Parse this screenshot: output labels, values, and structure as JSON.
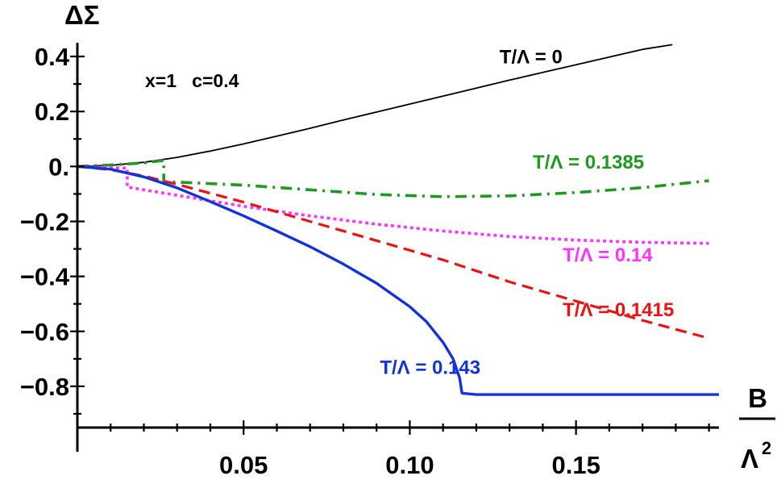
{
  "chart_data": {
    "type": "line",
    "title": "",
    "ylabel": "ΔΣ",
    "xlabel": {
      "numerator": "B",
      "denominator": "Λ",
      "denominator_exp": "2"
    },
    "annotation": "x=1   c=0.4",
    "xlim": [
      0,
      0.193
    ],
    "ylim": [
      -0.95,
      0.45
    ],
    "x_ticks": [
      {
        "value": 0.05,
        "label": "0.05"
      },
      {
        "value": 0.1,
        "label": "0.10"
      },
      {
        "value": 0.15,
        "label": "0.15"
      }
    ],
    "y_ticks": [
      {
        "value": 0.4,
        "label": "0.4"
      },
      {
        "value": 0.2,
        "label": "0.2"
      },
      {
        "value": 0.0,
        "label": "0."
      },
      {
        "value": -0.2,
        "label": "−0.2"
      },
      {
        "value": -0.4,
        "label": "−0.4"
      },
      {
        "value": -0.6,
        "label": "−0.6"
      },
      {
        "value": -0.8,
        "label": "−0.8"
      }
    ],
    "grid": false,
    "series": [
      {
        "name": "T/Λ = 0",
        "color": "#000000",
        "style": "solid",
        "points": [
          [
            0,
            0
          ],
          [
            0.01,
            0.004
          ],
          [
            0.02,
            0.015
          ],
          [
            0.03,
            0.033
          ],
          [
            0.04,
            0.056
          ],
          [
            0.05,
            0.082
          ],
          [
            0.06,
            0.11
          ],
          [
            0.07,
            0.139
          ],
          [
            0.08,
            0.169
          ],
          [
            0.09,
            0.198
          ],
          [
            0.1,
            0.227
          ],
          [
            0.11,
            0.256
          ],
          [
            0.12,
            0.285
          ],
          [
            0.13,
            0.314
          ],
          [
            0.14,
            0.342
          ],
          [
            0.15,
            0.37
          ],
          [
            0.16,
            0.398
          ],
          [
            0.17,
            0.426
          ],
          [
            0.179,
            0.443
          ]
        ]
      },
      {
        "name": "T/Λ = 0.1385",
        "color": "#1f9a1f",
        "style": "dashdot",
        "points": [
          [
            0,
            0
          ],
          [
            0.01,
            0.005
          ],
          [
            0.02,
            0.013
          ],
          [
            0.026,
            0.022
          ],
          [
            0.026,
            -0.055
          ],
          [
            0.03,
            -0.057
          ],
          [
            0.05,
            -0.068
          ],
          [
            0.07,
            -0.085
          ],
          [
            0.09,
            -0.102
          ],
          [
            0.11,
            -0.11
          ],
          [
            0.13,
            -0.107
          ],
          [
            0.15,
            -0.095
          ],
          [
            0.17,
            -0.077
          ],
          [
            0.19,
            -0.052
          ]
        ]
      },
      {
        "name": "T/Λ = 0.14",
        "color": "#ff33ff",
        "style": "dotted",
        "points": [
          [
            0,
            0
          ],
          [
            0.005,
            -0.003
          ],
          [
            0.015,
            -0.006
          ],
          [
            0.015,
            -0.075
          ],
          [
            0.03,
            -0.105
          ],
          [
            0.05,
            -0.145
          ],
          [
            0.07,
            -0.18
          ],
          [
            0.09,
            -0.21
          ],
          [
            0.11,
            -0.235
          ],
          [
            0.13,
            -0.255
          ],
          [
            0.15,
            -0.268
          ],
          [
            0.17,
            -0.276
          ],
          [
            0.19,
            -0.28
          ]
        ]
      },
      {
        "name": "T/Λ = 0.1415",
        "color": "#ee1111",
        "style": "dashed",
        "points": [
          [
            0,
            0
          ],
          [
            0.01,
            -0.012
          ],
          [
            0.02,
            -0.035
          ],
          [
            0.03,
            -0.065
          ],
          [
            0.05,
            -0.13
          ],
          [
            0.07,
            -0.2
          ],
          [
            0.09,
            -0.27
          ],
          [
            0.11,
            -0.34
          ],
          [
            0.13,
            -0.42
          ],
          [
            0.15,
            -0.49
          ],
          [
            0.17,
            -0.56
          ],
          [
            0.19,
            -0.625
          ]
        ]
      },
      {
        "name": "T/Λ = 0.143",
        "color": "#1133dd",
        "style": "solid-thick",
        "points": [
          [
            0,
            0
          ],
          [
            0.01,
            -0.01
          ],
          [
            0.02,
            -0.038
          ],
          [
            0.03,
            -0.078
          ],
          [
            0.04,
            -0.128
          ],
          [
            0.05,
            -0.18
          ],
          [
            0.06,
            -0.235
          ],
          [
            0.07,
            -0.292
          ],
          [
            0.08,
            -0.355
          ],
          [
            0.09,
            -0.425
          ],
          [
            0.1,
            -0.51
          ],
          [
            0.105,
            -0.565
          ],
          [
            0.11,
            -0.64
          ],
          [
            0.113,
            -0.7
          ],
          [
            0.115,
            -0.77
          ],
          [
            0.1157,
            -0.825
          ],
          [
            0.12,
            -0.83
          ],
          [
            0.193,
            -0.83
          ]
        ]
      }
    ],
    "series_labels": [
      {
        "text": "T/Λ = 0",
        "color": "#000000",
        "x": 0.127,
        "y": 0.375
      },
      {
        "text": "T/Λ = 0.1385",
        "color": "#1f9a1f",
        "x": 0.137,
        "y": -0.008
      },
      {
        "text": "T/Λ = 0.14",
        "color": "#ff33ff",
        "x": 0.146,
        "y": -0.345
      },
      {
        "text": "T/Λ = 0.1415",
        "color": "#ee1111",
        "x": 0.146,
        "y": -0.545
      },
      {
        "text": "T/Λ = 0.143",
        "color": "#1133dd",
        "x": 0.091,
        "y": -0.755
      }
    ]
  }
}
